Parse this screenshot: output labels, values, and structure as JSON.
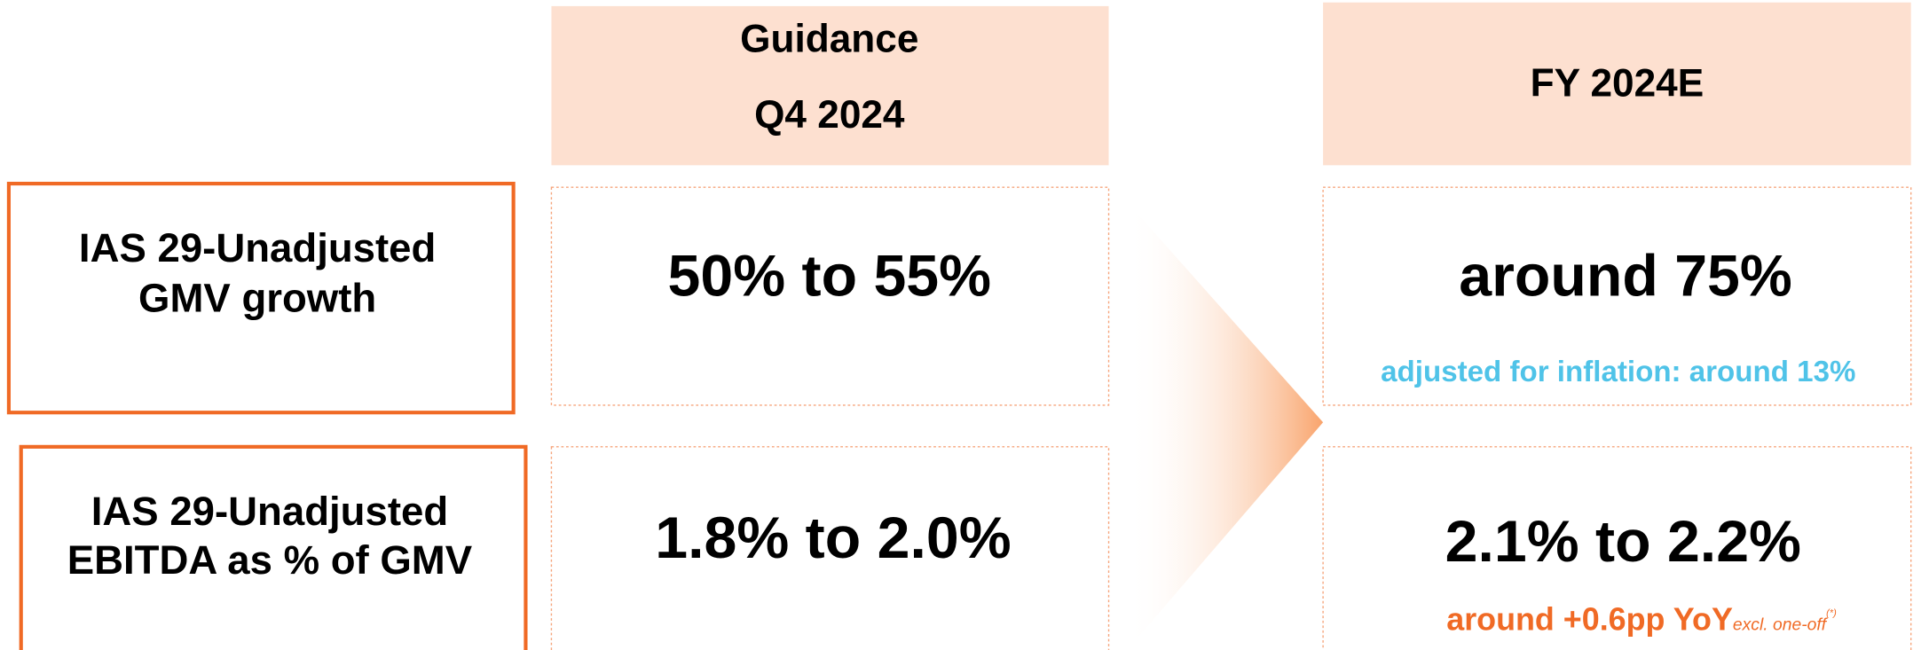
{
  "header": {
    "guidance": [
      "Guidance",
      "Q4 2024"
    ],
    "fy": "FY 2024E"
  },
  "rows": [
    {
      "label": [
        "IAS 29-Unadjusted",
        "GMV growth"
      ],
      "guidance": "50% to 55%",
      "fy": "around 75%",
      "note": "adjusted for inflation: around 13%"
    },
    {
      "label": [
        "IAS 29-Unadjusted",
        "EBITDA as % of GMV"
      ],
      "guidance": "1.8% to 2.0%",
      "fy": "2.1% to 2.2%",
      "note": {
        "main": "around +0.6pp YoY",
        "sub": "excl. one-off",
        "sup": "(*)"
      }
    }
  ]
}
